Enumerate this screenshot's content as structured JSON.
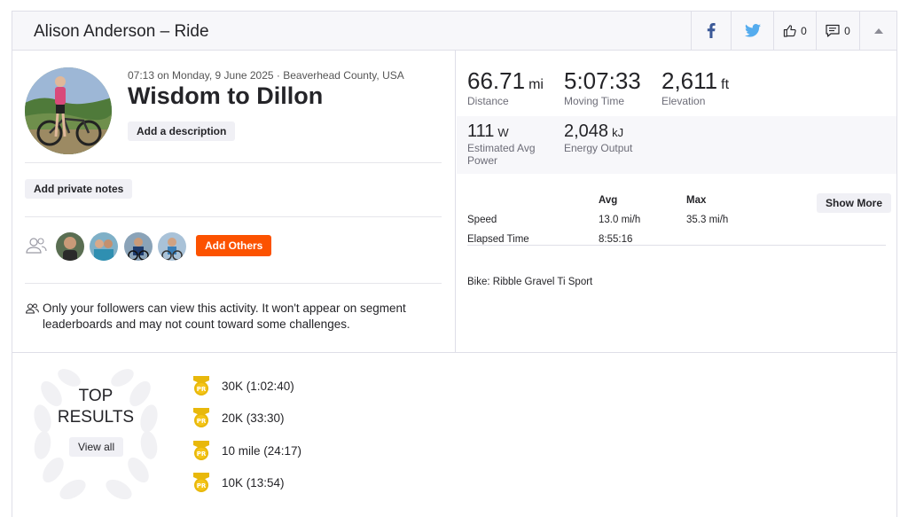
{
  "header": {
    "title": "Alison Anderson – Ride",
    "kudos_count": "0",
    "comment_count": "0"
  },
  "activity": {
    "meta": "07:13 on Monday, 9 June 2025 · Beaverhead County, USA",
    "name": "Wisdom to Dillon",
    "add_description_label": "Add a description",
    "add_private_notes_label": "Add private notes",
    "add_others_label": "Add Others",
    "privacy_text": "Only your followers can view this activity. It won't appear on segment leaderboards and may not count toward some challenges."
  },
  "stats": {
    "distance": {
      "value": "66.71",
      "unit": "mi",
      "label": "Distance"
    },
    "moving_time": {
      "value": "5:07:33",
      "label": "Moving Time"
    },
    "elevation": {
      "value": "2,611",
      "unit": "ft",
      "label": "Elevation"
    },
    "power": {
      "value": "111",
      "unit": "W",
      "label": "Estimated Avg Power"
    },
    "energy": {
      "value": "2,048",
      "unit": "kJ",
      "label": "Energy Output"
    }
  },
  "table": {
    "col_avg": "Avg",
    "col_max": "Max",
    "show_more_label": "Show More",
    "speed_label": "Speed",
    "speed_avg": "13.0 mi/h",
    "speed_max": "35.3 mi/h",
    "elapsed_label": "Elapsed Time",
    "elapsed_avg": "8:55:16",
    "bike": "Bike: Ribble Gravel Ti Sport"
  },
  "top_results": {
    "title_line1": "TOP",
    "title_line2": "RESULTS",
    "view_all_label": "View all",
    "badge_text": "PR",
    "items": [
      "30K  (1:02:40)",
      "20K  (33:30)",
      "10 mile  (24:17)",
      "10K  (13:54)"
    ]
  },
  "colors": {
    "accent": "#fc5200",
    "facebook": "#3b5998",
    "twitter": "#55acee",
    "pr_gold": "#e8b80b"
  },
  "icons": [
    "facebook-icon",
    "twitter-icon",
    "thumbs-up-icon",
    "comment-icon",
    "chevron-up-icon",
    "group-icon",
    "people-icon",
    "pr-medal-icon",
    "laurel-wreath-icon"
  ]
}
